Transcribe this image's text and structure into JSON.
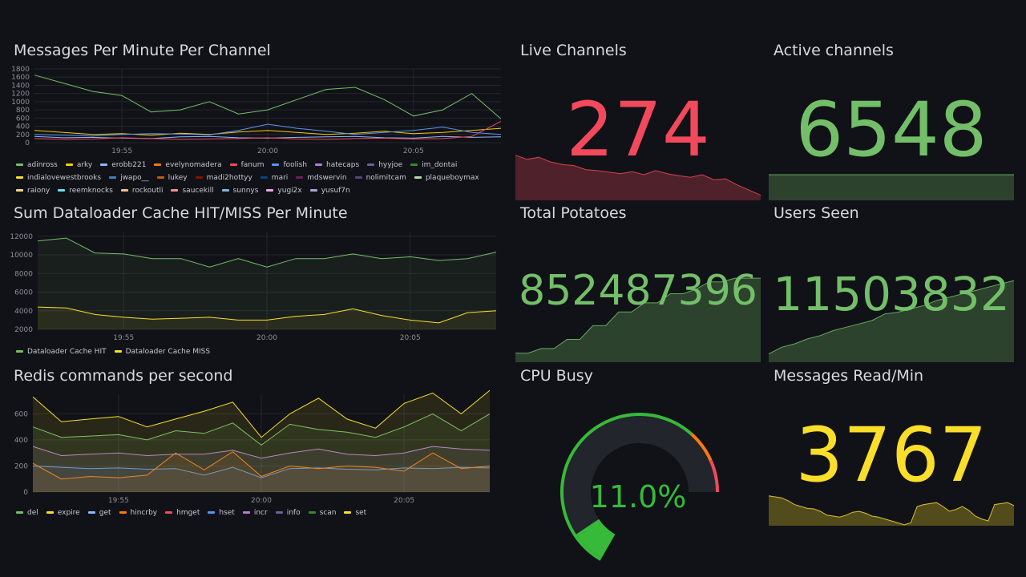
{
  "panels": {
    "messages": {
      "title": "Messages Per Minute Per Channel",
      "x_ticks": [
        "19:55",
        "20:00",
        "20:05"
      ],
      "y_ticks": [
        0,
        200,
        400,
        600,
        800,
        1000,
        1200,
        1400,
        1600,
        1800
      ],
      "legend": [
        {
          "name": "adinross",
          "color": "#73bf69"
        },
        {
          "name": "arky",
          "color": "#f2cc0c"
        },
        {
          "name": "erobb221",
          "color": "#8ab8ff"
        },
        {
          "name": "evelynomadera",
          "color": "#ff780a"
        },
        {
          "name": "fanum",
          "color": "#f2495c"
        },
        {
          "name": "foolish",
          "color": "#5794f2"
        },
        {
          "name": "hatecaps",
          "color": "#b877d9"
        },
        {
          "name": "hyyjoe",
          "color": "#705da0"
        },
        {
          "name": "im_dontai",
          "color": "#37872d"
        },
        {
          "name": "indialovewestbrooks",
          "color": "#fade2a"
        },
        {
          "name": "jwapo__",
          "color": "#447ebc"
        },
        {
          "name": "lukey",
          "color": "#c15c17"
        },
        {
          "name": "madi2hottyy",
          "color": "#890f02"
        },
        {
          "name": "mari",
          "color": "#0a437c"
        },
        {
          "name": "mdswervin",
          "color": "#6d1f62"
        },
        {
          "name": "nolimitcam",
          "color": "#584477"
        },
        {
          "name": "plaqueboymax",
          "color": "#b7dbab"
        },
        {
          "name": "raiony",
          "color": "#f4d598"
        },
        {
          "name": "reemknocks",
          "color": "#70dbed"
        },
        {
          "name": "rockoutli",
          "color": "#f9ba8f"
        },
        {
          "name": "saucekill",
          "color": "#f29191"
        },
        {
          "name": "sunnys",
          "color": "#82b5d8"
        },
        {
          "name": "yugi2x",
          "color": "#e5a8e2"
        },
        {
          "name": "yusuf7n",
          "color": "#aea2e0"
        }
      ]
    },
    "cache": {
      "title": "Sum Dataloader Cache HIT/MISS Per Minute",
      "x_ticks": [
        "19:55",
        "20:00",
        "20:05"
      ],
      "y_ticks": [
        2000,
        4000,
        6000,
        8000,
        10000,
        12000
      ],
      "legend": [
        {
          "name": "Dataloader Cache HIT",
          "color": "#73bf69"
        },
        {
          "name": "Dataloader Cache MISS",
          "color": "#fade2a"
        }
      ]
    },
    "redis": {
      "title": "Redis commands per second",
      "x_ticks": [
        "19:55",
        "20:00",
        "20:05"
      ],
      "y_ticks": [
        0,
        200,
        400,
        600
      ],
      "legend": [
        {
          "name": "del",
          "color": "#73bf69"
        },
        {
          "name": "expire",
          "color": "#fade2a"
        },
        {
          "name": "get",
          "color": "#8ab8ff"
        },
        {
          "name": "hincrby",
          "color": "#ff780a"
        },
        {
          "name": "hmget",
          "color": "#f2495c"
        },
        {
          "name": "hset",
          "color": "#5794f2"
        },
        {
          "name": "incr",
          "color": "#b877d9"
        },
        {
          "name": "info",
          "color": "#705da0"
        },
        {
          "name": "scan",
          "color": "#37872d"
        },
        {
          "name": "set",
          "color": "#fade2a"
        }
      ]
    },
    "live_channels": {
      "title": "Live Channels",
      "value": "274",
      "color": "#f2495c"
    },
    "active_channels": {
      "title": "Active channels",
      "value": "6548",
      "color": "#73bf69"
    },
    "total_potatoes": {
      "title": "Total Potatoes",
      "value": "852487396",
      "color": "#73bf69"
    },
    "users_seen": {
      "title": "Users Seen",
      "value": "11503832",
      "color": "#73bf69"
    },
    "cpu_busy": {
      "title": "CPU Busy",
      "value": "11.0%",
      "percent": 11.0,
      "color": "#37b93a"
    },
    "messages_read": {
      "title": "Messages Read/Min",
      "value": "3767",
      "color": "#fade2a"
    }
  },
  "chart_data": [
    {
      "type": "line",
      "title": "Messages Per Minute Per Channel",
      "x": [
        "19:52",
        "19:53",
        "19:54",
        "19:55",
        "19:56",
        "19:57",
        "19:58",
        "19:59",
        "20:00",
        "20:01",
        "20:02",
        "20:03",
        "20:04",
        "20:05",
        "20:06",
        "20:07",
        "20:08"
      ],
      "ylim": [
        0,
        1800
      ],
      "series": [
        {
          "name": "adinross",
          "values": [
            1650,
            1450,
            1250,
            1150,
            750,
            800,
            1000,
            700,
            800,
            1050,
            1300,
            1350,
            1050,
            650,
            800,
            1200,
            580
          ]
        },
        {
          "name": "arky",
          "values": [
            300,
            250,
            200,
            220,
            180,
            230,
            200,
            260,
            300,
            250,
            200,
            230,
            280,
            220,
            250,
            300,
            350
          ]
        },
        {
          "name": "erobb221",
          "values": [
            150,
            120,
            130,
            110,
            100,
            140,
            150,
            120,
            110,
            130,
            140,
            150,
            120,
            110,
            150,
            130,
            140
          ]
        },
        {
          "name": "fanum",
          "values": [
            100,
            80,
            90,
            120,
            100,
            80,
            90,
            100,
            120,
            90,
            80,
            100,
            110,
            90,
            100,
            150,
            520
          ]
        },
        {
          "name": "foolish",
          "values": [
            200,
            180,
            160,
            200,
            220,
            210,
            190,
            300,
            450,
            350,
            280,
            200,
            250,
            300,
            380,
            250,
            200
          ]
        }
      ]
    },
    {
      "type": "area",
      "title": "Sum Dataloader Cache HIT/MISS Per Minute",
      "x": [
        "19:52",
        "19:53",
        "19:54",
        "19:55",
        "19:56",
        "19:57",
        "19:58",
        "19:59",
        "20:00",
        "20:01",
        "20:02",
        "20:03",
        "20:04",
        "20:05",
        "20:06",
        "20:07",
        "20:08"
      ],
      "ylim": [
        2000,
        12500
      ],
      "series": [
        {
          "name": "Dataloader Cache HIT",
          "values": [
            11500,
            11800,
            10200,
            10100,
            9600,
            9600,
            8700,
            9600,
            8700,
            9600,
            9600,
            10100,
            9600,
            9800,
            9400,
            9600,
            10300
          ]
        },
        {
          "name": "Dataloader Cache MISS",
          "values": [
            4400,
            4300,
            3600,
            3300,
            3100,
            3200,
            3300,
            3000,
            3000,
            3400,
            3600,
            4200,
            3500,
            3000,
            2700,
            3800,
            4000
          ]
        }
      ]
    },
    {
      "type": "area",
      "title": "Redis commands per second",
      "x": [
        "19:52",
        "19:53",
        "19:54",
        "19:55",
        "19:56",
        "19:57",
        "19:58",
        "19:59",
        "20:00",
        "20:01",
        "20:02",
        "20:03",
        "20:04",
        "20:05",
        "20:06",
        "20:07",
        "20:08"
      ],
      "ylim": [
        0,
        750
      ],
      "series": [
        {
          "name": "hset",
          "values": [
            200,
            190,
            180,
            185,
            175,
            180,
            130,
            190,
            110,
            180,
            185,
            175,
            170,
            185,
            180,
            190,
            185
          ]
        },
        {
          "name": "hincrby",
          "values": [
            220,
            100,
            120,
            110,
            130,
            300,
            170,
            310,
            120,
            200,
            180,
            200,
            190,
            160,
            300,
            180,
            200
          ]
        },
        {
          "name": "incr",
          "values": [
            350,
            280,
            290,
            300,
            280,
            290,
            290,
            320,
            260,
            300,
            330,
            290,
            280,
            300,
            350,
            330,
            320
          ]
        },
        {
          "name": "del",
          "values": [
            500,
            420,
            430,
            440,
            400,
            470,
            450,
            530,
            360,
            520,
            480,
            460,
            420,
            500,
            600,
            470,
            600
          ]
        },
        {
          "name": "expire",
          "values": [
            730,
            540,
            560,
            580,
            500,
            560,
            620,
            690,
            420,
            600,
            720,
            560,
            490,
            680,
            760,
            600,
            780
          ]
        }
      ]
    },
    {
      "type": "area",
      "title": "Live Channels",
      "values": [
        88,
        80,
        84,
        75,
        70,
        68,
        60,
        58,
        55,
        52,
        56,
        50,
        58,
        52,
        48,
        45,
        50,
        40,
        42,
        30,
        20,
        10
      ]
    },
    {
      "type": "area",
      "title": "Active channels",
      "values": [
        100,
        100,
        100,
        100,
        100,
        100,
        100,
        100,
        100,
        100,
        100,
        100
      ]
    },
    {
      "type": "area",
      "title": "Total Potatoes",
      "values": [
        10,
        10,
        15,
        15,
        25,
        25,
        40,
        40,
        55,
        55,
        65,
        65,
        75,
        75,
        80,
        88,
        88,
        92,
        92,
        92
      ]
    },
    {
      "type": "area",
      "title": "Users Seen",
      "values": [
        10,
        18,
        22,
        28,
        32,
        38,
        42,
        46,
        50,
        58,
        60,
        64,
        68,
        74,
        78,
        82,
        86,
        90,
        94,
        98
      ]
    },
    {
      "type": "area",
      "title": "Messages Read/Min",
      "values": [
        62,
        60,
        58,
        52,
        44,
        40,
        36,
        35,
        30,
        22,
        20,
        18,
        22,
        28,
        30,
        26,
        20,
        18,
        14,
        10,
        6,
        2,
        6,
        40,
        44,
        46,
        48,
        40,
        30,
        34,
        40,
        32,
        20,
        14,
        10,
        44,
        46,
        48,
        42
      ]
    }
  ]
}
